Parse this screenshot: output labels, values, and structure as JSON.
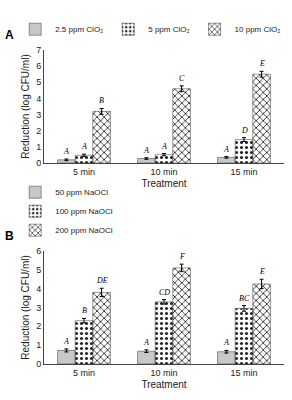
{
  "chart_data": [
    {
      "type": "bar",
      "title": "A",
      "categories": [
        "5 min",
        "10 min",
        "15 min"
      ],
      "series": [
        {
          "name": "2.5 ppm ClO₂",
          "color": "#c8c8c8",
          "values": [
            0.2,
            0.28,
            0.35
          ],
          "errors": [
            0.05,
            0.05,
            0.05
          ],
          "letters": [
            "A",
            "A",
            "A"
          ]
        },
        {
          "name": "5 ppm ClO₂",
          "color": "#383838",
          "values": [
            0.48,
            0.52,
            1.45
          ],
          "errors": [
            0.07,
            0.07,
            0.12
          ],
          "letters": [
            "A",
            "A",
            "D"
          ]
        },
        {
          "name": "10 ppm ClO₂",
          "color": "#cccccc",
          "values": [
            3.2,
            4.6,
            5.5
          ],
          "errors": [
            0.18,
            0.18,
            0.18
          ],
          "letters": [
            "B",
            "C",
            "E"
          ]
        }
      ],
      "xlabel": "Treatment",
      "ylabel": "Reduction (log CFU/ml)",
      "ylim": [
        0,
        7
      ],
      "yticks": [
        0,
        1,
        2,
        3,
        4,
        5,
        6,
        7
      ],
      "grid": false,
      "legend": "top"
    },
    {
      "type": "bar",
      "title": "B",
      "categories": [
        "5 min",
        "10 min",
        "15 min"
      ],
      "series": [
        {
          "name": "50 ppm NaOCl",
          "color": "#c8c8c8",
          "values": [
            0.72,
            0.68,
            0.65
          ],
          "errors": [
            0.08,
            0.07,
            0.07
          ],
          "letters": [
            "A",
            "A",
            "A"
          ]
        },
        {
          "name": "100 ppm NaOCl",
          "color": "#383838",
          "values": [
            2.3,
            3.3,
            2.95
          ],
          "errors": [
            0.12,
            0.12,
            0.15
          ],
          "letters": [
            "B",
            "CD",
            "BC"
          ]
        },
        {
          "name": "200 ppm NaOCl",
          "color": "#cccccc",
          "values": [
            3.8,
            5.1,
            4.25
          ],
          "errors": [
            0.22,
            0.2,
            0.25
          ],
          "letters": [
            "DE",
            "F",
            "E"
          ]
        }
      ],
      "xlabel": "Treatment",
      "ylabel": "Reduction (log CFU/ml)",
      "ylim": [
        0,
        6
      ],
      "yticks": [
        0,
        1,
        2,
        3,
        4,
        5,
        6
      ],
      "grid": false,
      "legend": "top"
    }
  ]
}
